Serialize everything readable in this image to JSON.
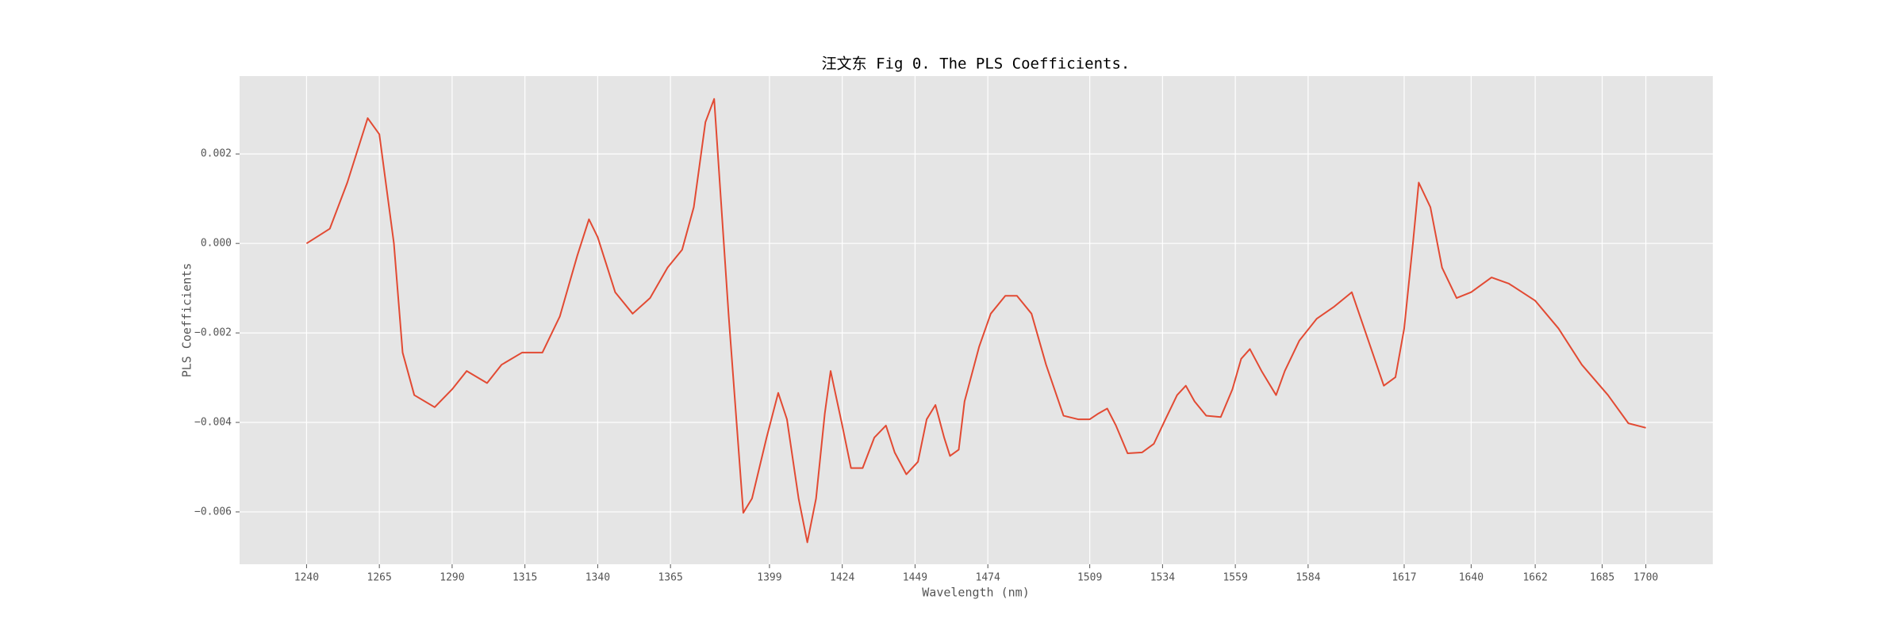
{
  "chart_data": {
    "type": "line",
    "title": "汪文东 Fig 0. The PLS Coefficients.",
    "x_label": "Wavelength (nm)",
    "y_label": "PLS Coefficients",
    "grid": true,
    "xlim": [
      1217,
      1723
    ],
    "ylim": [
      -0.00717,
      0.00374
    ],
    "xticks": [
      1240,
      1265,
      1290,
      1315,
      1340,
      1365,
      1399,
      1424,
      1449,
      1474,
      1509,
      1534,
      1559,
      1584,
      1617,
      1640,
      1662,
      1685,
      1700
    ],
    "yticks": [
      {
        "value": -0.006,
        "label": "−0.006"
      },
      {
        "value": -0.004,
        "label": "−0.004"
      },
      {
        "value": -0.002,
        "label": "−0.002"
      },
      {
        "value": 0,
        "label": "0.000"
      },
      0.002
    ],
    "x": [
      1240,
      1248,
      1254,
      1261,
      1265,
      1270,
      1273,
      1277,
      1284,
      1290,
      1295,
      1302,
      1307,
      1314,
      1321,
      1327,
      1333,
      1337,
      1340,
      1346,
      1352,
      1358,
      1364,
      1369,
      1373,
      1377,
      1380,
      1385,
      1390,
      1393,
      1398,
      1402,
      1405,
      1409,
      1412,
      1415,
      1418,
      1420,
      1424,
      1427,
      1431,
      1435,
      1439,
      1442,
      1446,
      1450,
      1453,
      1456,
      1459,
      1461,
      1464,
      1466,
      1471,
      1475,
      1480,
      1484,
      1489,
      1494,
      1500,
      1505,
      1509,
      1512,
      1515,
      1518,
      1522,
      1527,
      1531,
      1535,
      1539,
      1542,
      1545,
      1549,
      1554,
      1558,
      1561,
      1564,
      1568,
      1573,
      1576,
      1581,
      1587,
      1593,
      1599,
      1604,
      1610,
      1614,
      1617,
      1620,
      1622,
      1626,
      1630,
      1635,
      1640,
      1647,
      1653,
      1662,
      1670,
      1678,
      1687,
      1694,
      1700
    ],
    "series": [
      {
        "name": "PLS Coefficients",
        "color": "#e24a33",
        "values": [
          0,
          0.00033,
          0.00136,
          0.0028,
          0.00244,
          0,
          -0.00244,
          -0.00339,
          -0.00366,
          -0.00326,
          -0.00285,
          -0.00312,
          -0.00271,
          -0.00244,
          -0.00244,
          -0.00163,
          -0.00027,
          0.00054,
          0.00014,
          -0.00109,
          -0.00157,
          -0.00122,
          -0.00054,
          -0.00014,
          0.00081,
          0.00271,
          0.00323,
          -0.00163,
          -0.00602,
          -0.0057,
          -0.00434,
          -0.00334,
          -0.00393,
          -0.0057,
          -0.00668,
          -0.0057,
          -0.0038,
          -0.00285,
          -0.00407,
          -0.00502,
          -0.00502,
          -0.00434,
          -0.00407,
          -0.00467,
          -0.00516,
          -0.00488,
          -0.00393,
          -0.00361,
          -0.00434,
          -0.00475,
          -0.00461,
          -0.00353,
          -0.00231,
          -0.00157,
          -0.00117,
          -0.00117,
          -0.00157,
          -0.00271,
          -0.00385,
          -0.00393,
          -0.00393,
          -0.0038,
          -0.00369,
          -0.00407,
          -0.00469,
          -0.00467,
          -0.00448,
          -0.00393,
          -0.00339,
          -0.00318,
          -0.00353,
          -0.00385,
          -0.00388,
          -0.00326,
          -0.00258,
          -0.00236,
          -0.00285,
          -0.00339,
          -0.00285,
          -0.00217,
          -0.00168,
          -0.00141,
          -0.00109,
          -0.00204,
          -0.00318,
          -0.00299,
          -0.0019,
          0,
          0.00136,
          0.00081,
          -0.00054,
          -0.00122,
          -0.00109,
          -0.00076,
          -0.0009,
          -0.00128,
          -0.0019,
          -0.00271,
          -0.00339,
          -0.00402,
          -0.00412
        ]
      }
    ]
  }
}
